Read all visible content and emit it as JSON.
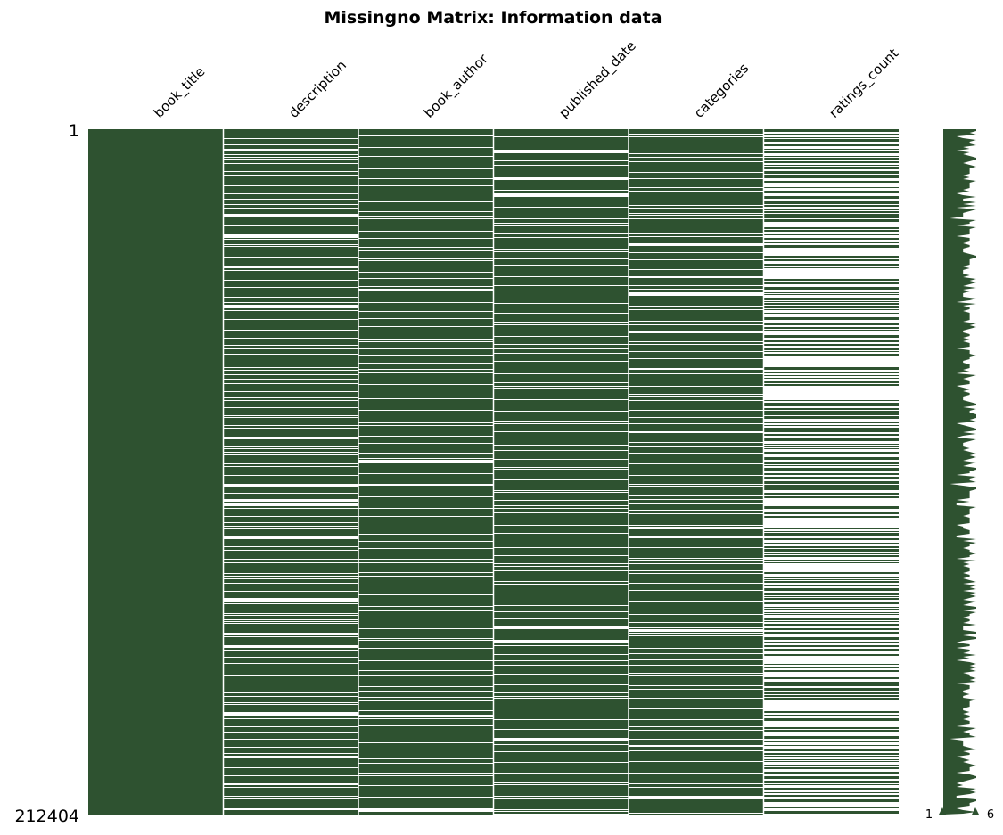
{
  "chart_data": {
    "type": "heatmap",
    "title": "Missingno Matrix: Information data",
    "row_labels": [
      "1",
      "212404"
    ],
    "rows_total": 212404,
    "columns": [
      "book_title",
      "description",
      "book_author",
      "published_date",
      "categories",
      "ratings_count"
    ],
    "missing_fraction": [
      0.0,
      0.32,
      0.1,
      0.12,
      0.19,
      0.77
    ],
    "band_seeds": [
      1,
      7,
      13,
      19,
      29,
      37
    ],
    "colors": {
      "present": "#2e5230",
      "missing": "#ffffff",
      "divider": "#ffffff"
    },
    "sparkline": {
      "min_label": "1",
      "max_label": "6",
      "min_value": 1,
      "max_value": 6
    }
  }
}
